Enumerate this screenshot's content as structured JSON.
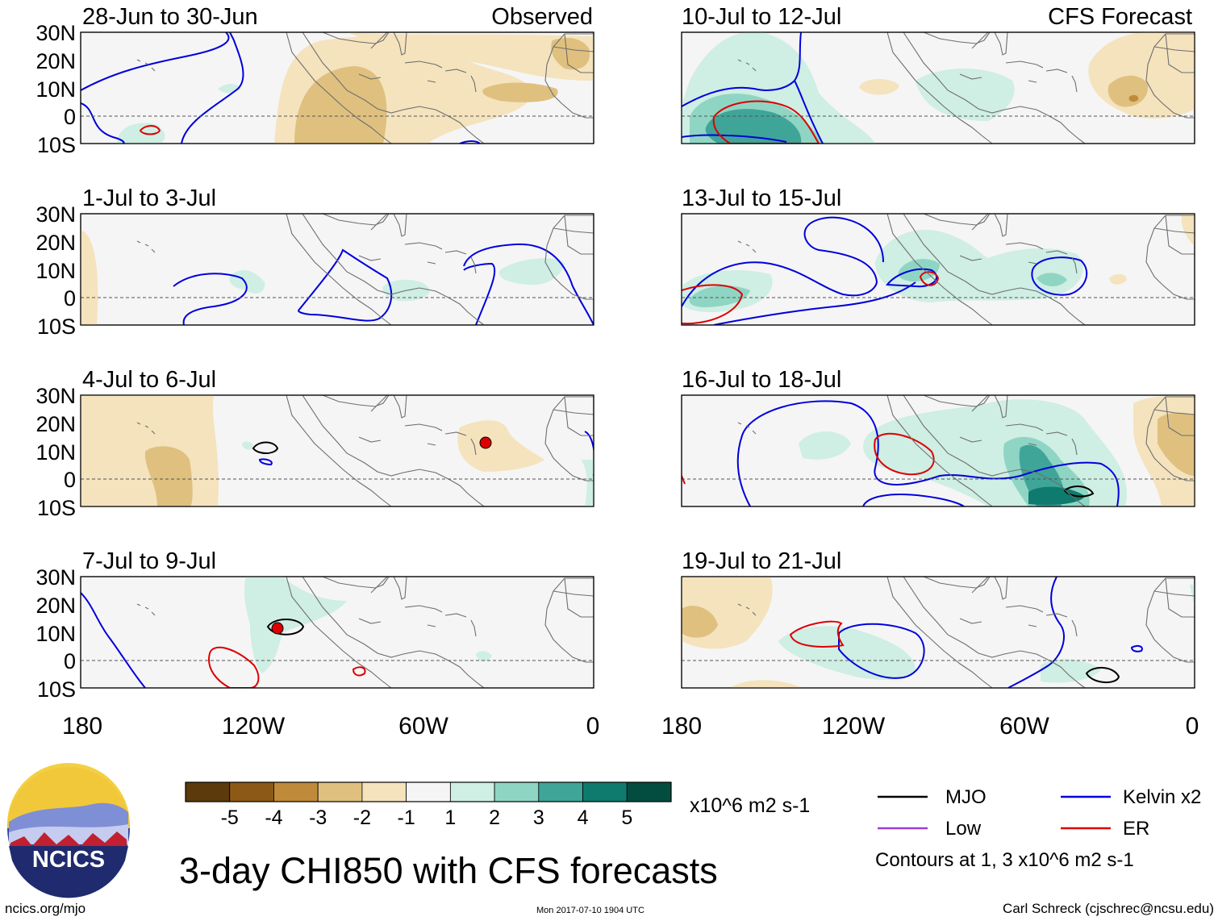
{
  "title": "3-day CHI850 with CFS forecasts",
  "colors": {
    "mjo": "#000000",
    "low": "#9b3fd6",
    "kelvin": "#0000dd",
    "er": "#dd0000",
    "cb": [
      "#5c3a0c",
      "#8c5a16",
      "#bf8a3a",
      "#dfc07f",
      "#f4e3bd",
      "#f5f5f5",
      "#cfeee4",
      "#8fd5c4",
      "#3fa598",
      "#0e7b6e",
      "#034d40"
    ]
  },
  "columns": {
    "left_label": "Observed",
    "right_label": "CFS Forecast"
  },
  "panels": [
    {
      "period": "28-Jun to 30-Jun"
    },
    {
      "period": "1-Jul to 3-Jul"
    },
    {
      "period": "4-Jul to 6-Jul"
    },
    {
      "period": "7-Jul to 9-Jul"
    },
    {
      "period": "10-Jul to 12-Jul"
    },
    {
      "period": "13-Jul to 15-Jul"
    },
    {
      "period": "16-Jul to 18-Jul"
    },
    {
      "period": "19-Jul to 21-Jul"
    }
  ],
  "chart_data": {
    "type": "heatmap",
    "title": "3-day CHI850 with CFS forecasts",
    "field": "CHI850",
    "units": "x10^6 m2 s-1",
    "lat_ticks": [
      "30N",
      "20N",
      "10N",
      "0",
      "10S"
    ],
    "lon_ticks": [
      "180",
      "120W",
      "60W",
      "0"
    ],
    "lat_range": [
      -10,
      30
    ],
    "lon_range": [
      -180,
      0
    ],
    "colorbar_ticks": [
      "-5",
      "-4",
      "-3",
      "-2",
      "-1",
      "1",
      "2",
      "3",
      "4",
      "5"
    ],
    "legend": [
      {
        "name": "MJO"
      },
      {
        "name": "Kelvin x2"
      },
      {
        "name": "Low"
      },
      {
        "name": "ER"
      }
    ],
    "contour_note": "Contours at 1, 3 x10^6 m2 s-1"
  },
  "footer": {
    "logo_text": "NCICS",
    "left": "ncics.org/mjo",
    "center": "Mon 2017-07-10 1904 UTC",
    "right": "Carl Schreck (cjschrec@ncsu.edu)"
  }
}
